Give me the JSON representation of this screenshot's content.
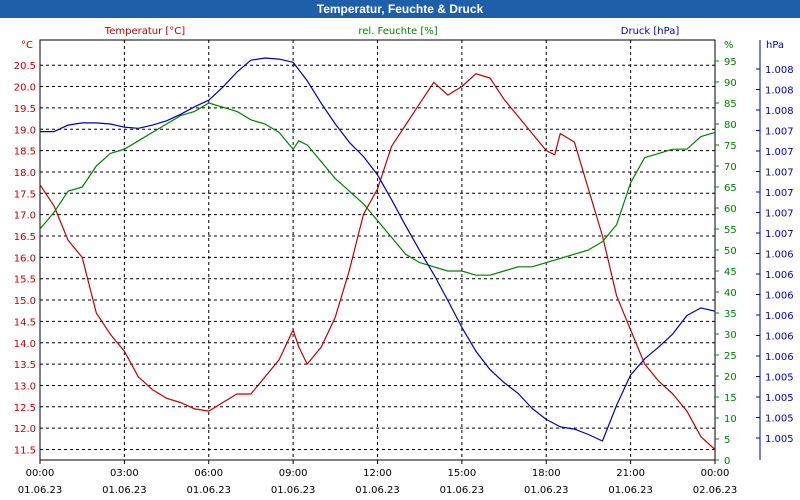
{
  "title": "Temperatur, Feuchte & Druck",
  "chart_data": {
    "type": "line",
    "title": "Temperatur, Feuchte & Druck",
    "x_ticks": [
      {
        "time": "00:00",
        "date": "01.06.23"
      },
      {
        "time": "03:00",
        "date": "01.06.23"
      },
      {
        "time": "06:00",
        "date": "01.06.23"
      },
      {
        "time": "09:00",
        "date": "01.06.23"
      },
      {
        "time": "12:00",
        "date": "01.06.23"
      },
      {
        "time": "15:00",
        "date": "01.06.23"
      },
      {
        "time": "18:00",
        "date": "01.06.23"
      },
      {
        "time": "21:00",
        "date": "01.06.23"
      },
      {
        "time": "00:00",
        "date": "02.06.23"
      }
    ],
    "xlim": [
      0,
      24
    ],
    "axes": {
      "temperature": {
        "label": "Temperatur [°C]",
        "unit": "°C",
        "color": "#c00000",
        "ylim": [
          11.1,
          21.3
        ],
        "ticks": [
          "11.5",
          "12.0",
          "12.5",
          "13.0",
          "13.5",
          "14.0",
          "14.5",
          "15.0",
          "15.5",
          "16.0",
          "16.5",
          "17.0",
          "17.5",
          "18.0",
          "18.5",
          "19.0",
          "19.5",
          "20.0",
          "20.5"
        ]
      },
      "humidity": {
        "label": "rel. Feuchte [%]",
        "unit": "%",
        "color": "#008000",
        "ylim": [
          0,
          100
        ],
        "ticks": [
          "0",
          "5",
          "10",
          "15",
          "20",
          "25",
          "30",
          "35",
          "40",
          "45",
          "50",
          "55",
          "60",
          "65",
          "70",
          "75",
          "80",
          "85",
          "90",
          "95"
        ]
      },
      "pressure": {
        "label": "Druck [hPa]",
        "unit": "hPa",
        "color": "#0000b0",
        "ticks": [
          "1.005",
          "1.005",
          "1.005",
          "1.005",
          "1.006",
          "1.006",
          "1.006",
          "1.006",
          "1.006",
          "1.006",
          "1.007",
          "1.007",
          "1.007",
          "1.007",
          "1.007",
          "1.007",
          "1.008",
          "1.008",
          "1.008"
        ]
      }
    },
    "series": [
      {
        "name": "Temperatur",
        "axis": "temperature",
        "x": [
          0,
          0.5,
          1,
          1.5,
          2,
          2.5,
          3,
          3.5,
          4,
          4.5,
          5,
          5.5,
          6,
          6.5,
          7,
          7.5,
          8,
          8.5,
          9,
          9.2,
          9.5,
          10,
          10.5,
          11,
          11.5,
          12,
          12.5,
          13,
          13.5,
          14,
          14.5,
          15,
          15.5,
          16,
          16.5,
          17,
          17.5,
          18,
          18.3,
          18.5,
          19,
          19.5,
          20,
          20.5,
          21,
          21.5,
          22,
          22.5,
          23,
          23.5,
          24
        ],
        "values": [
          17.7,
          17.2,
          16.4,
          16.0,
          14.7,
          14.2,
          13.8,
          13.2,
          12.9,
          12.7,
          12.6,
          12.45,
          12.4,
          12.6,
          12.8,
          12.8,
          13.2,
          13.6,
          14.3,
          13.9,
          13.5,
          13.9,
          14.6,
          15.7,
          17.0,
          17.6,
          18.6,
          19.1,
          19.6,
          20.1,
          19.8,
          20.0,
          20.3,
          20.2,
          19.7,
          19.3,
          18.9,
          18.5,
          18.4,
          18.9,
          18.7,
          17.6,
          16.5,
          15.1,
          14.3,
          13.5,
          13.1,
          12.8,
          12.4,
          11.8,
          11.5
        ]
      },
      {
        "name": "rel. Feuchte",
        "axis": "humidity",
        "x": [
          0,
          0.5,
          1,
          1.5,
          2,
          2.5,
          3,
          3.5,
          4,
          4.5,
          5,
          5.5,
          6,
          6.5,
          7,
          7.5,
          8,
          8.5,
          9,
          9.2,
          9.5,
          10,
          10.5,
          11,
          11.5,
          12,
          12.5,
          13,
          13.5,
          14,
          14.5,
          15,
          15.5,
          16,
          16.5,
          17,
          17.5,
          18,
          18.5,
          19,
          19.5,
          20,
          20.5,
          21,
          21.5,
          22,
          22.5,
          23,
          23.5,
          24
        ],
        "values": [
          55,
          59,
          64,
          65,
          70,
          73,
          74,
          76,
          78,
          80,
          82,
          83,
          85,
          84,
          83,
          81,
          80,
          78,
          74,
          76,
          75,
          71,
          67,
          64,
          61,
          57,
          53,
          49,
          47,
          46,
          45,
          45,
          44,
          44,
          45,
          46,
          46,
          47,
          48,
          49,
          50,
          52,
          56,
          66,
          72,
          73,
          74,
          74,
          77,
          78
        ]
      },
      {
        "name": "Druck",
        "axis": "pressure",
        "x": [
          0,
          0.5,
          1,
          1.5,
          2,
          2.5,
          3,
          3.5,
          4,
          4.5,
          5,
          5.5,
          6,
          6.5,
          7,
          7.5,
          8,
          8.5,
          9,
          9.5,
          10,
          10.5,
          11,
          11.5,
          12,
          12.5,
          13,
          13.5,
          14,
          14.5,
          15,
          15.5,
          16,
          16.5,
          17,
          17.5,
          18,
          18.5,
          19,
          19.5,
          20,
          20.5,
          21,
          21.5,
          22,
          22.5,
          23,
          23.5,
          24
        ],
        "values": [
          1.00738,
          1.00738,
          1.00744,
          1.00746,
          1.00746,
          1.00745,
          1.00742,
          1.00741,
          1.00744,
          1.00748,
          1.00754,
          1.00761,
          1.00767,
          1.00779,
          1.00793,
          1.00804,
          1.00806,
          1.00805,
          1.00802,
          1.00785,
          1.00764,
          1.00745,
          1.00728,
          1.00715,
          1.00698,
          1.00675,
          1.00651,
          1.00628,
          1.00606,
          1.00582,
          1.00557,
          1.00535,
          1.00518,
          1.00506,
          1.00496,
          1.00482,
          1.00472,
          1.00465,
          1.00463,
          1.00458,
          1.00452,
          1.00485,
          1.00513,
          1.00528,
          1.00539,
          1.00551,
          1.00568,
          1.00575,
          1.00572
        ]
      }
    ]
  }
}
